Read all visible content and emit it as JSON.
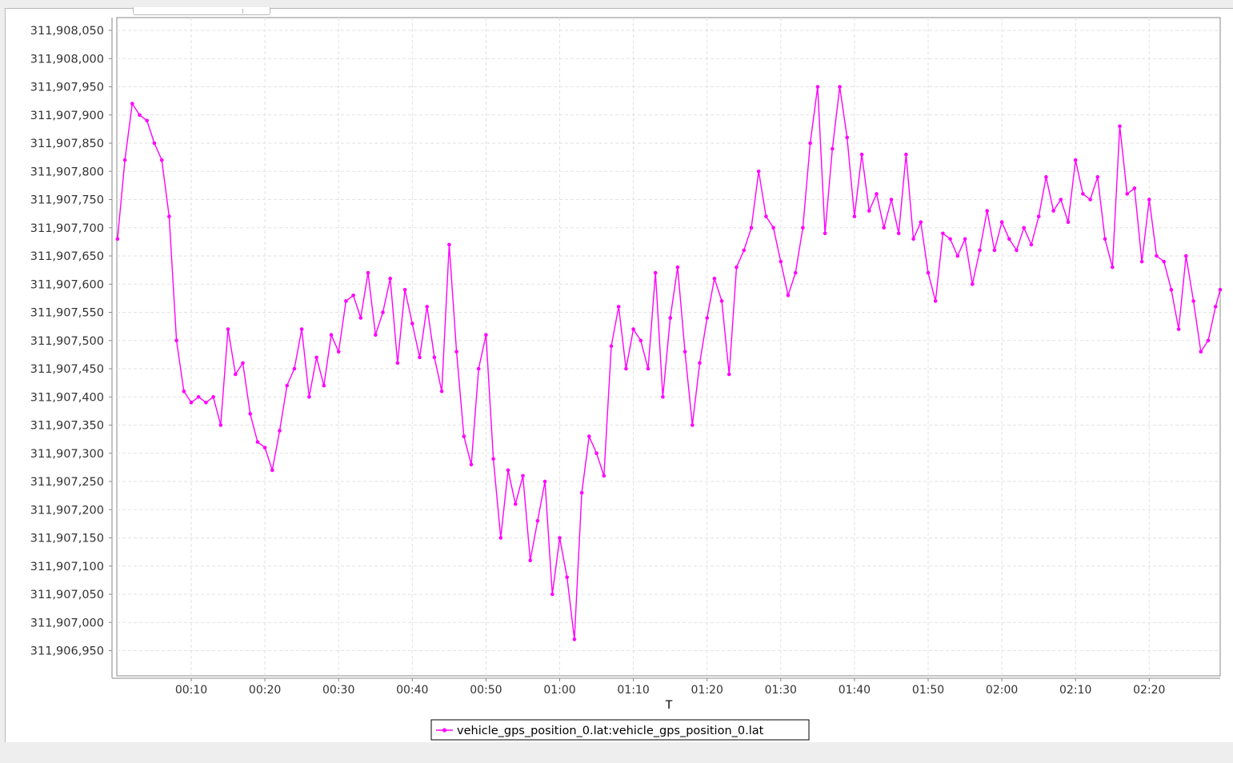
{
  "chart_data": {
    "type": "line",
    "title": "",
    "xlabel": "T",
    "ylabel": "",
    "x_unit": "elapsed time (mm:ss)",
    "xlim": [
      "00:00",
      "02:30"
    ],
    "ylim": [
      311906925,
      311908075
    ],
    "y_ticks": [
      "311,906,950",
      "311,907,000",
      "311,907,050",
      "311,907,100",
      "311,907,150",
      "311,907,200",
      "311,907,250",
      "311,907,300",
      "311,907,350",
      "311,907,400",
      "311,907,450",
      "311,907,500",
      "311,907,550",
      "311,907,600",
      "311,907,650",
      "311,907,700",
      "311,907,750",
      "311,907,800",
      "311,907,850",
      "311,907,900",
      "311,907,950",
      "311,908,000",
      "311,908,050"
    ],
    "x_ticks": [
      "00:10",
      "00:20",
      "00:30",
      "00:40",
      "00:50",
      "01:00",
      "01:10",
      "01:20",
      "01:30",
      "01:40",
      "01:50",
      "02:00",
      "02:10",
      "02:20"
    ],
    "grid": true,
    "legend_position": "bottom-center",
    "series": [
      {
        "name": "vehicle_gps_position_0.lat:vehicle_gps_position_0.lat",
        "color": "#ff00ff",
        "marker": "circle",
        "points": [
          [
            "00:00",
            311907680
          ],
          [
            "00:01",
            311907820
          ],
          [
            "00:02",
            311907920
          ],
          [
            "00:03",
            311907900
          ],
          [
            "00:04",
            311907890
          ],
          [
            "00:05",
            311907850
          ],
          [
            "00:06",
            311907820
          ],
          [
            "00:07",
            311907720
          ],
          [
            "00:08",
            311907500
          ],
          [
            "00:09",
            311907410
          ],
          [
            "00:10",
            311907390
          ],
          [
            "00:11",
            311907400
          ],
          [
            "00:12",
            311907390
          ],
          [
            "00:13",
            311907400
          ],
          [
            "00:14",
            311907350
          ],
          [
            "00:15",
            311907520
          ],
          [
            "00:16",
            311907440
          ],
          [
            "00:17",
            311907460
          ],
          [
            "00:18",
            311907370
          ],
          [
            "00:19",
            311907320
          ],
          [
            "00:20",
            311907310
          ],
          [
            "00:21",
            311907270
          ],
          [
            "00:22",
            311907340
          ],
          [
            "00:23",
            311907420
          ],
          [
            "00:24",
            311907450
          ],
          [
            "00:25",
            311907520
          ],
          [
            "00:26",
            311907400
          ],
          [
            "00:27",
            311907470
          ],
          [
            "00:28",
            311907420
          ],
          [
            "00:29",
            311907510
          ],
          [
            "00:30",
            311907480
          ],
          [
            "00:31",
            311907570
          ],
          [
            "00:32",
            311907580
          ],
          [
            "00:33",
            311907540
          ],
          [
            "00:34",
            311907620
          ],
          [
            "00:35",
            311907510
          ],
          [
            "00:36",
            311907550
          ],
          [
            "00:37",
            311907610
          ],
          [
            "00:38",
            311907460
          ],
          [
            "00:39",
            311907590
          ],
          [
            "00:40",
            311907530
          ],
          [
            "00:41",
            311907470
          ],
          [
            "00:42",
            311907560
          ],
          [
            "00:43",
            311907470
          ],
          [
            "00:44",
            311907410
          ],
          [
            "00:45",
            311907670
          ],
          [
            "00:46",
            311907480
          ],
          [
            "00:47",
            311907330
          ],
          [
            "00:48",
            311907280
          ],
          [
            "00:49",
            311907450
          ],
          [
            "00:50",
            311907510
          ],
          [
            "00:51",
            311907290
          ],
          [
            "00:52",
            311907150
          ],
          [
            "00:53",
            311907270
          ],
          [
            "00:54",
            311907210
          ],
          [
            "00:55",
            311907260
          ],
          [
            "00:56",
            311907110
          ],
          [
            "00:57",
            311907180
          ],
          [
            "00:58",
            311907250
          ],
          [
            "00:59",
            311907050
          ],
          [
            "01:00",
            311907150
          ],
          [
            "01:01",
            311907080
          ],
          [
            "01:02",
            311906970
          ],
          [
            "01:03",
            311907230
          ],
          [
            "01:04",
            311907330
          ],
          [
            "01:05",
            311907300
          ],
          [
            "01:06",
            311907260
          ],
          [
            "01:07",
            311907490
          ],
          [
            "01:08",
            311907560
          ],
          [
            "01:09",
            311907450
          ],
          [
            "01:10",
            311907520
          ],
          [
            "01:11",
            311907500
          ],
          [
            "01:12",
            311907450
          ],
          [
            "01:13",
            311907620
          ],
          [
            "01:14",
            311907400
          ],
          [
            "01:15",
            311907540
          ],
          [
            "01:16",
            311907630
          ],
          [
            "01:17",
            311907480
          ],
          [
            "01:18",
            311907350
          ],
          [
            "01:19",
            311907460
          ],
          [
            "01:20",
            311907540
          ],
          [
            "01:21",
            311907610
          ],
          [
            "01:22",
            311907570
          ],
          [
            "01:23",
            311907440
          ],
          [
            "01:24",
            311907630
          ],
          [
            "01:25",
            311907660
          ],
          [
            "01:26",
            311907700
          ],
          [
            "01:27",
            311907800
          ],
          [
            "01:28",
            311907720
          ],
          [
            "01:29",
            311907700
          ],
          [
            "01:30",
            311907640
          ],
          [
            "01:31",
            311907580
          ],
          [
            "01:32",
            311907620
          ],
          [
            "01:33",
            311907700
          ],
          [
            "01:34",
            311907850
          ],
          [
            "01:35",
            311907950
          ],
          [
            "01:36",
            311907690
          ],
          [
            "01:37",
            311907840
          ],
          [
            "01:38",
            311907950
          ],
          [
            "01:39",
            311907860
          ],
          [
            "01:40",
            311907720
          ],
          [
            "01:41",
            311907830
          ],
          [
            "01:42",
            311907730
          ],
          [
            "01:43",
            311907760
          ],
          [
            "01:44",
            311907700
          ],
          [
            "01:45",
            311907750
          ],
          [
            "01:46",
            311907690
          ],
          [
            "01:47",
            311907830
          ],
          [
            "01:48",
            311907680
          ],
          [
            "01:49",
            311907710
          ],
          [
            "01:50",
            311907620
          ],
          [
            "01:51",
            311907570
          ],
          [
            "01:52",
            311907690
          ],
          [
            "01:53",
            311907680
          ],
          [
            "01:54",
            311907650
          ],
          [
            "01:55",
            311907680
          ],
          [
            "01:56",
            311907600
          ],
          [
            "01:57",
            311907660
          ],
          [
            "01:58",
            311907730
          ],
          [
            "01:59",
            311907660
          ],
          [
            "02:00",
            311907710
          ],
          [
            "02:01",
            311907680
          ],
          [
            "02:02",
            311907660
          ],
          [
            "02:03",
            311907700
          ],
          [
            "02:04",
            311907670
          ],
          [
            "02:05",
            311907720
          ],
          [
            "02:06",
            311907790
          ],
          [
            "02:07",
            311907730
          ],
          [
            "02:08",
            311907750
          ],
          [
            "02:09",
            311907710
          ],
          [
            "02:10",
            311907820
          ],
          [
            "02:11",
            311907760
          ],
          [
            "02:12",
            311907750
          ],
          [
            "02:13",
            311907790
          ],
          [
            "02:14",
            311907680
          ],
          [
            "02:15",
            311907630
          ],
          [
            "02:16",
            311907880
          ],
          [
            "02:17",
            311907760
          ],
          [
            "02:18",
            311907770
          ],
          [
            "02:19",
            311907640
          ],
          [
            "02:20",
            311907750
          ],
          [
            "02:21",
            311907650
          ],
          [
            "02:22",
            311907640
          ],
          [
            "02:23",
            311907590
          ],
          [
            "02:24",
            311907520
          ],
          [
            "02:25",
            311907650
          ],
          [
            "02:26",
            311907570
          ],
          [
            "02:27",
            311907480
          ],
          [
            "02:28",
            311907500
          ],
          [
            "02:29",
            311907560
          ],
          [
            "02:30",
            311907590
          ]
        ]
      }
    ]
  }
}
